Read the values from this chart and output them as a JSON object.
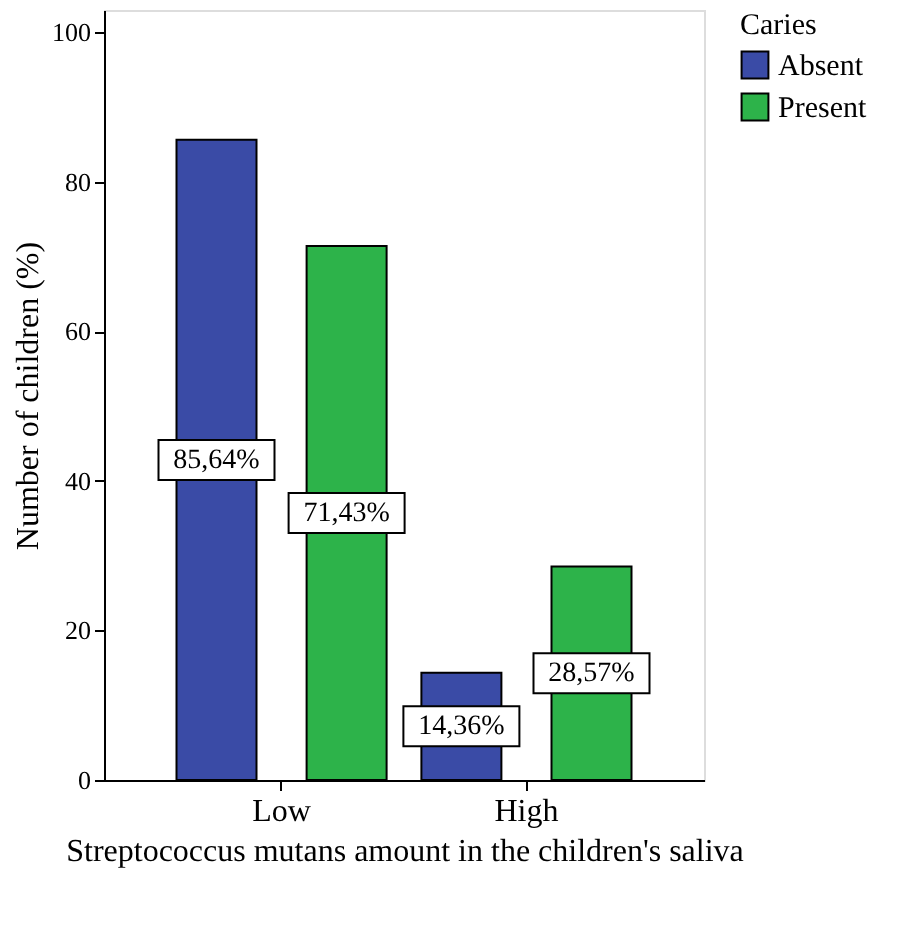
{
  "chart_data": {
    "type": "bar",
    "xlabel": "Streptococcus mutans amount in the children's saliva",
    "ylabel": "Number of children (%)",
    "legend_title": "Caries",
    "categories": [
      "Low",
      "High"
    ],
    "series": [
      {
        "name": "Absent",
        "color": "#3a4ba6",
        "values": [
          85.64,
          14.36
        ],
        "value_labels": [
          "85,64%",
          "14,36%"
        ]
      },
      {
        "name": "Present",
        "color": "#2db34a",
        "values": [
          71.43,
          28.57
        ],
        "value_labels": [
          "71,43%",
          "28,57%"
        ]
      }
    ],
    "ylim": [
      0,
      103
    ],
    "yticks": [
      0,
      20,
      40,
      60,
      80,
      100
    ],
    "grid": false,
    "legend": "top right"
  }
}
